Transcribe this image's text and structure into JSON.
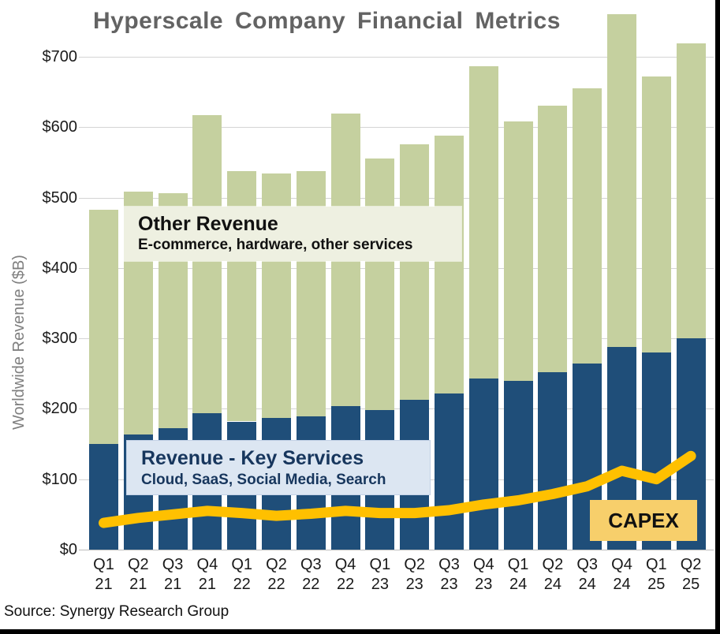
{
  "page": {
    "title": "Hyperscale Company Financial Metrics",
    "source": "Source: Synergy Research Group"
  },
  "chart_data": {
    "type": "bar",
    "stacked": true,
    "title": "Hyperscale Company Financial Metrics",
    "xlabel": "",
    "ylabel": "Worldwide Revenue ($B)",
    "ylim": [
      0,
      770
    ],
    "ytick_step": 100,
    "ytick_prefix": "$",
    "grid": true,
    "legend_position": "annotations-on-plot",
    "categories": [
      [
        "Q1",
        "21"
      ],
      [
        "Q2",
        "21"
      ],
      [
        "Q3",
        "21"
      ],
      [
        "Q4",
        "21"
      ],
      [
        "Q1",
        "22"
      ],
      [
        "Q2",
        "22"
      ],
      [
        "Q3",
        "22"
      ],
      [
        "Q4",
        "22"
      ],
      [
        "Q1",
        "23"
      ],
      [
        "Q2",
        "23"
      ],
      [
        "Q3",
        "23"
      ],
      [
        "Q4",
        "23"
      ],
      [
        "Q1",
        "24"
      ],
      [
        "Q2",
        "24"
      ],
      [
        "Q3",
        "24"
      ],
      [
        "Q4",
        "24"
      ],
      [
        "Q1",
        "25"
      ],
      [
        "Q2",
        "25"
      ]
    ],
    "series": [
      {
        "name": "Revenue - Key Services",
        "type": "bar",
        "color": "#1f4e79",
        "values": [
          150,
          164,
          172,
          194,
          182,
          187,
          189,
          204,
          198,
          213,
          222,
          243,
          240,
          252,
          264,
          288,
          280,
          300
        ]
      },
      {
        "name": "Other Revenue",
        "type": "bar",
        "color": "#c5d09f",
        "values": [
          333,
          345,
          334,
          423,
          356,
          347,
          349,
          415,
          357,
          363,
          366,
          444,
          368,
          378,
          391,
          472,
          392,
          419
        ]
      },
      {
        "name": "CAPEX",
        "type": "line",
        "color": "#ffc000",
        "values": [
          38,
          45,
          50,
          55,
          52,
          48,
          51,
          55,
          52,
          52,
          56,
          64,
          70,
          79,
          90,
          112,
          100,
          133
        ]
      }
    ],
    "stack_totals": [
      483,
      509,
      506,
      617,
      538,
      534,
      538,
      619,
      555,
      576,
      588,
      687,
      608,
      630,
      655,
      760,
      672,
      719
    ],
    "annotations": {
      "other": {
        "title": "Other Revenue",
        "subtitle": "E-commerce, hardware, other services",
        "bg": "#eef0e1"
      },
      "key_services": {
        "title": "Revenue - Key Services",
        "subtitle": "Cloud, SaaS, Social Media, Search",
        "bg": "#dce6f2",
        "fg": "#17365d"
      },
      "capex": {
        "title": "CAPEX",
        "bg": "#f7cf6b"
      }
    }
  }
}
